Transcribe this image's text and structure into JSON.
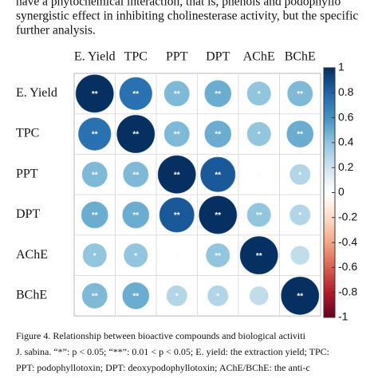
{
  "text": {
    "paragraph": [
      "have a phytochemical interaction, that is, phenols and podophyllo",
      "synergistic effect in inhibiting cholinesterase activity, but the specific",
      "further analysis."
    ],
    "caption": [
      "Figure 4.  Relationship between bioactive compounds and biological activiti",
      "J. sabina. “*”: p < 0.05; “**”: 0.01 < p < 0.05; E. yield: the extraction yield; TPC:",
      "PPT: podophyllotoxin; DPT: deoxypodophyllotoxin; AChE/BChE: the anti-c"
    ]
  },
  "chart_data": {
    "type": "corrplot",
    "categories": [
      "E. Yield",
      "TPC",
      "PPT",
      "DPT",
      "AChE",
      "BChE"
    ],
    "values": [
      [
        1,
        0.75,
        0.45,
        0.5,
        0.4,
        0.45
      ],
      [
        0.75,
        1,
        0.45,
        0.5,
        0.4,
        0.5
      ],
      [
        0.45,
        0.45,
        1,
        0.85,
        0.02,
        0.3
      ],
      [
        0.5,
        0.5,
        0.85,
        1,
        0.4,
        0.3
      ],
      [
        0.4,
        0.4,
        0.02,
        0.4,
        1,
        0.25
      ],
      [
        0.45,
        0.5,
        0.3,
        0.3,
        0.25,
        1
      ]
    ],
    "labels": [
      [
        "**",
        "**",
        "**",
        "**",
        "*",
        "**"
      ],
      [
        "**",
        "**",
        "**",
        "**",
        "*",
        "**"
      ],
      [
        "**",
        "**",
        "**",
        "**",
        null,
        "*"
      ],
      [
        "**",
        "**",
        "**",
        "**",
        "**",
        "*"
      ],
      [
        "*",
        "*",
        null,
        "**",
        "**",
        null
      ],
      [
        "**",
        "**",
        "*",
        "*",
        null,
        "**"
      ]
    ],
    "ylim": [
      -1,
      1
    ],
    "yticks": [
      1,
      0.8,
      0.6,
      0.4,
      0.2,
      0,
      -0.2,
      -0.4,
      -0.6,
      -0.8,
      -1
    ]
  }
}
